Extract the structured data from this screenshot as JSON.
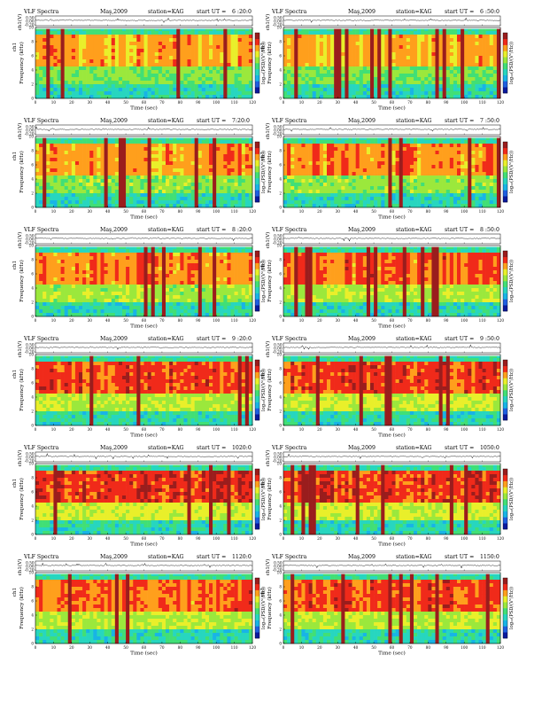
{
  "page": {
    "background": "#ffffff"
  },
  "common": {
    "chart_label": "VLF Spectra",
    "date": "Maş,2009",
    "station": "station=KAG",
    "start_prefix": "start  UT =",
    "ch_label": "ch1(V)",
    "spec_label_top": "ch1",
    "spec_label": "Frequency  (kHz)",
    "colorbar_label": "log₁₀(PSD/(V²/Hz))",
    "xlabel": "Time  (sec)",
    "xticks": [
      "0",
      "10",
      "20",
      "30",
      "40",
      "50",
      "60",
      "70",
      "80",
      "90",
      "100",
      "110",
      "120"
    ],
    "fticks": [
      "0",
      "2",
      "4",
      "6",
      "8",
      "10"
    ],
    "vticks": [
      "0.50",
      "0.00",
      "-0.20"
    ]
  },
  "palette": [
    "#0a1a9e",
    "#1f5fe0",
    "#18b4e6",
    "#27d6bf",
    "#41df76",
    "#9be83c",
    "#e9ef2a",
    "#ff9f1c",
    "#f02a1a",
    "#9a1d1d"
  ],
  "chart_data": [
    {
      "type": "heatmap",
      "title": "VLF Spectra",
      "start_ut": "6 :20:0",
      "x_range": [
        0,
        120
      ],
      "y_range": [
        0,
        10
      ],
      "intensity": 0.34,
      "seed": 11
    },
    {
      "type": "heatmap",
      "title": "VLF Spectra",
      "start_ut": "6 :50:0",
      "x_range": [
        0,
        120
      ],
      "y_range": [
        0,
        10
      ],
      "intensity": 0.3,
      "seed": 23
    },
    {
      "type": "heatmap",
      "title": "VLF Spectra",
      "start_ut": "7:20:0",
      "x_range": [
        0,
        120
      ],
      "y_range": [
        0,
        10
      ],
      "intensity": 0.45,
      "seed": 37
    },
    {
      "type": "heatmap",
      "title": "VLF Spectra",
      "start_ut": "7 :50:0",
      "x_range": [
        0,
        120
      ],
      "y_range": [
        0,
        10
      ],
      "intensity": 0.47,
      "seed": 41
    },
    {
      "type": "heatmap",
      "title": "VLF Spectra",
      "start_ut": "8 :20:0",
      "x_range": [
        0,
        120
      ],
      "y_range": [
        0,
        10
      ],
      "intensity": 0.55,
      "seed": 53
    },
    {
      "type": "heatmap",
      "title": "VLF Spectra",
      "start_ut": "8 :50:0",
      "x_range": [
        0,
        120
      ],
      "y_range": [
        0,
        10
      ],
      "intensity": 0.62,
      "seed": 67
    },
    {
      "type": "heatmap",
      "title": "VLF Spectra",
      "start_ut": "9 :20:0",
      "x_range": [
        0,
        120
      ],
      "y_range": [
        0,
        10
      ],
      "intensity": 0.72,
      "seed": 71
    },
    {
      "type": "heatmap",
      "title": "VLF Spectra",
      "start_ut": "9 :50:0",
      "x_range": [
        0,
        120
      ],
      "y_range": [
        0,
        10
      ],
      "intensity": 0.8,
      "seed": 83
    },
    {
      "type": "heatmap",
      "title": "VLF Spectra",
      "start_ut": "1020:0",
      "x_range": [
        0,
        120
      ],
      "y_range": [
        0,
        10
      ],
      "intensity": 0.88,
      "seed": 97
    },
    {
      "type": "heatmap",
      "title": "VLF Spectra",
      "start_ut": "1050:0",
      "x_range": [
        0,
        120
      ],
      "y_range": [
        0,
        10
      ],
      "intensity": 0.86,
      "seed": 101
    },
    {
      "type": "heatmap",
      "title": "VLF Spectra",
      "start_ut": "1120:0",
      "x_range": [
        0,
        120
      ],
      "y_range": [
        0,
        10
      ],
      "intensity": 0.66,
      "seed": 113
    },
    {
      "type": "heatmap",
      "title": "VLF Spectra",
      "start_ut": "1150:0",
      "x_range": [
        0,
        120
      ],
      "y_range": [
        0,
        10
      ],
      "intensity": 0.7,
      "seed": 127
    }
  ]
}
